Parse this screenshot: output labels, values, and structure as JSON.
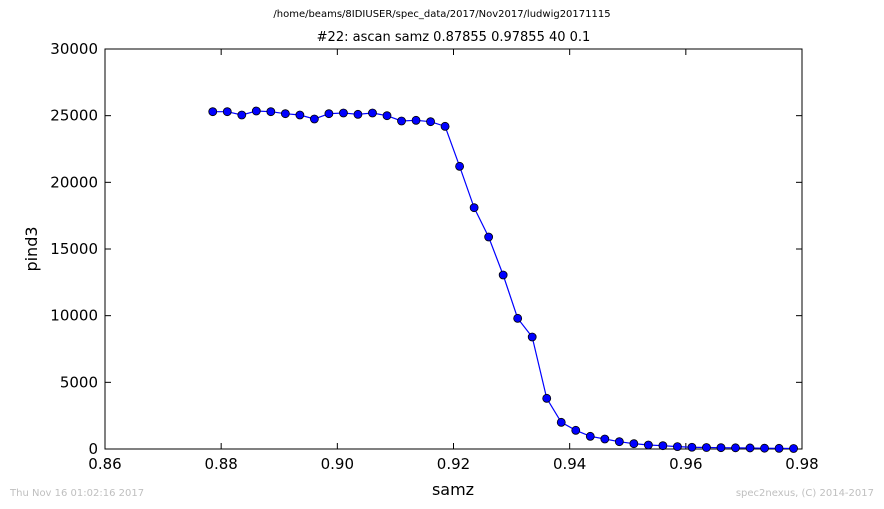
{
  "header": {
    "path_title": "/home/beams/8IDIUSER/spec_data/2017/Nov2017/ludwig20171115"
  },
  "footer": {
    "timestamp": "Thu Nov 16 01:02:16 2017",
    "credit": "spec2nexus, (C) 2014-2017"
  },
  "chart_data": {
    "type": "line",
    "title": "#22: ascan  samz 0.87855 0.97855  40 0.1",
    "xlabel": "samz",
    "ylabel": "pind3",
    "xlim": [
      0.86,
      0.98
    ],
    "ylim": [
      0,
      30000
    ],
    "xticks": [
      "0.86",
      "0.88",
      "0.90",
      "0.92",
      "0.94",
      "0.96",
      "0.98"
    ],
    "yticks": [
      "0",
      "5000",
      "10000",
      "15000",
      "20000",
      "25000",
      "30000"
    ],
    "grid": false,
    "marker": "circle",
    "color": "#0000ff",
    "x": [
      0.87855,
      0.88105,
      0.88355,
      0.88605,
      0.88855,
      0.89105,
      0.89355,
      0.89605,
      0.89855,
      0.90105,
      0.90355,
      0.90605,
      0.90855,
      0.91105,
      0.91355,
      0.91605,
      0.91855,
      0.92105,
      0.92355,
      0.92605,
      0.92855,
      0.93105,
      0.93355,
      0.93605,
      0.93855,
      0.94105,
      0.94355,
      0.94605,
      0.94855,
      0.95105,
      0.95355,
      0.95605,
      0.95855,
      0.96105,
      0.96355,
      0.96605,
      0.96855,
      0.97105,
      0.97355,
      0.97605,
      0.97855
    ],
    "y": [
      25300,
      25300,
      25050,
      25350,
      25300,
      25150,
      25050,
      24750,
      25150,
      25200,
      25100,
      25200,
      25000,
      24600,
      24650,
      24550,
      24200,
      21200,
      18100,
      15900,
      13050,
      9800,
      8400,
      3800,
      2000,
      1400,
      950,
      750,
      550,
      400,
      300,
      250,
      180,
      130,
      110,
      100,
      90,
      80,
      60,
      50,
      40
    ]
  }
}
